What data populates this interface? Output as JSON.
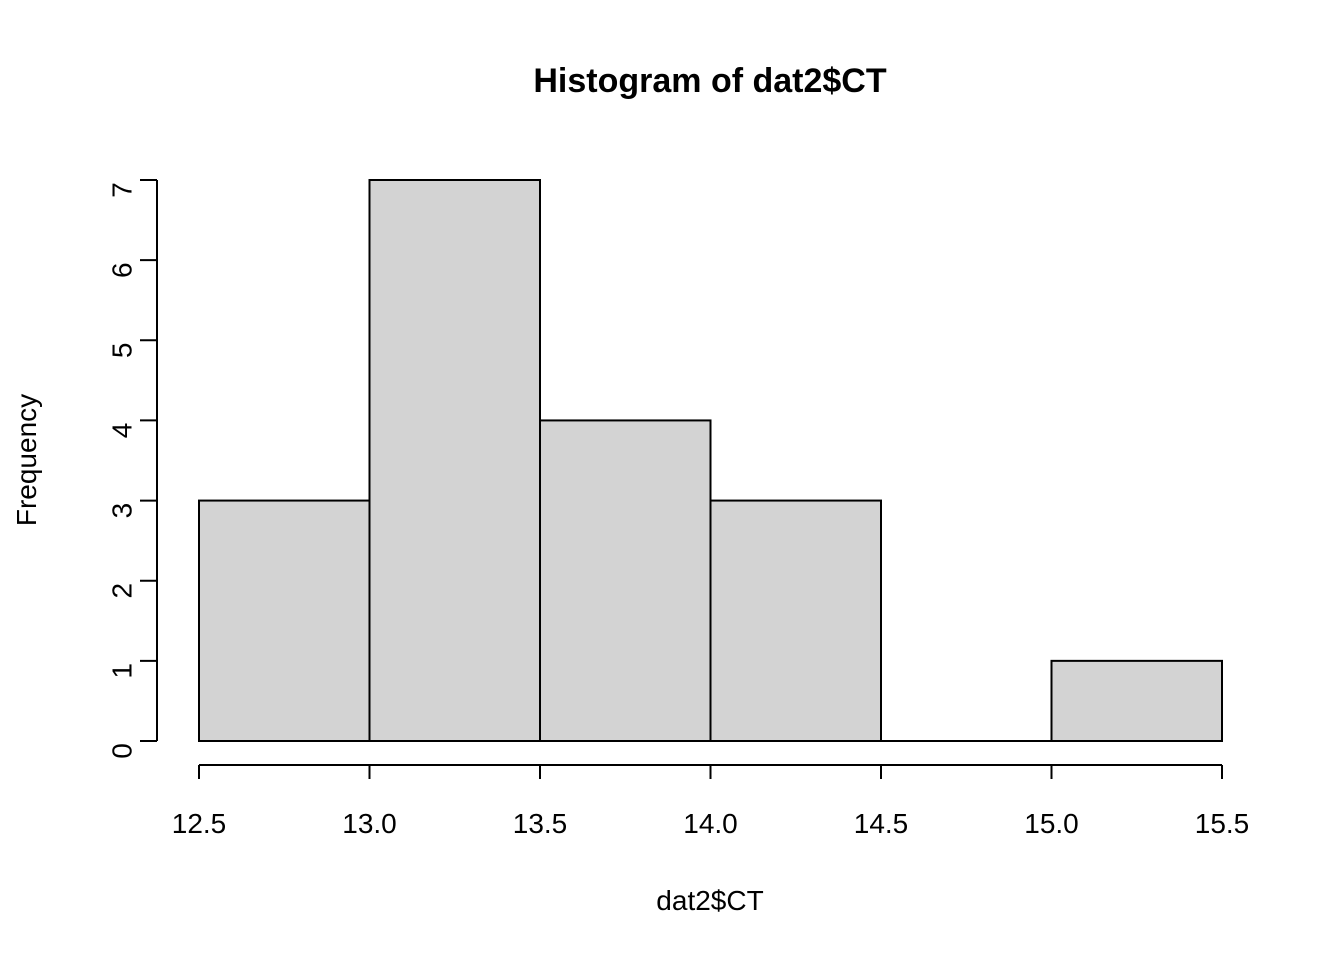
{
  "chart_data": {
    "type": "bar",
    "title": "Histogram of dat2$CT",
    "xlabel": "dat2$CT",
    "ylabel": "Frequency",
    "bins": [
      {
        "start": 12.5,
        "end": 13.0,
        "count": 3
      },
      {
        "start": 13.0,
        "end": 13.5,
        "count": 7
      },
      {
        "start": 13.5,
        "end": 14.0,
        "count": 4
      },
      {
        "start": 14.0,
        "end": 14.5,
        "count": 3
      },
      {
        "start": 14.5,
        "end": 15.0,
        "count": 0
      },
      {
        "start": 15.0,
        "end": 15.5,
        "count": 1
      }
    ],
    "x_ticks": [
      "12.5",
      "13.0",
      "13.5",
      "14.0",
      "14.5",
      "15.0",
      "15.5"
    ],
    "y_ticks": [
      "0",
      "1",
      "2",
      "3",
      "4",
      "5",
      "6",
      "7"
    ],
    "xlim": [
      12.5,
      15.5
    ],
    "ylim": [
      0,
      7
    ],
    "bar_color": "#d3d3d3",
    "grid": false
  }
}
